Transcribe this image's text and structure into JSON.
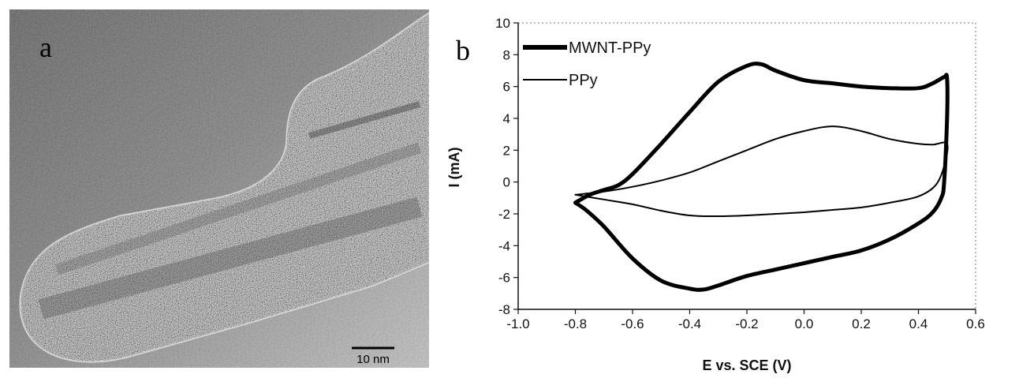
{
  "panel_a": {
    "label": "a",
    "scale_bar_label": "10 nm"
  },
  "panel_b": {
    "label": "b"
  },
  "chart_data": {
    "type": "line",
    "title": "",
    "xlabel": "E vs. SCE (V)",
    "ylabel": "I (mA)",
    "xlim": [
      -1.0,
      0.6
    ],
    "ylim": [
      -8,
      10
    ],
    "x_ticks": [
      "-1.0",
      "-0.8",
      "-0.6",
      "-0.4",
      "-0.2",
      "0.0",
      "0.2",
      "0.4",
      "0.6"
    ],
    "y_ticks": [
      "10",
      "8",
      "6",
      "4",
      "2",
      "0",
      "-2",
      "-4",
      "-6",
      "-8"
    ],
    "legend_position": "top-left",
    "series": [
      {
        "name": "MWNT-PPy",
        "line_weight": "thick",
        "points": [
          [
            -0.8,
            -1.3
          ],
          [
            -0.75,
            -0.8
          ],
          [
            -0.7,
            -0.5
          ],
          [
            -0.65,
            -0.2
          ],
          [
            -0.6,
            0.5
          ],
          [
            -0.5,
            2.4
          ],
          [
            -0.4,
            4.4
          ],
          [
            -0.3,
            6.3
          ],
          [
            -0.2,
            7.3
          ],
          [
            -0.15,
            7.4
          ],
          [
            -0.1,
            7.0
          ],
          [
            0.0,
            6.4
          ],
          [
            0.1,
            6.2
          ],
          [
            0.2,
            6.0
          ],
          [
            0.3,
            5.9
          ],
          [
            0.4,
            5.9
          ],
          [
            0.45,
            6.2
          ],
          [
            0.49,
            6.6
          ],
          [
            0.5,
            6.5
          ],
          [
            0.5,
            4.0
          ],
          [
            0.49,
            0.0
          ],
          [
            0.48,
            -1.0
          ],
          [
            0.45,
            -1.9
          ],
          [
            0.4,
            -2.6
          ],
          [
            0.3,
            -3.6
          ],
          [
            0.2,
            -4.3
          ],
          [
            0.1,
            -4.7
          ],
          [
            0.0,
            -5.1
          ],
          [
            -0.1,
            -5.5
          ],
          [
            -0.2,
            -5.9
          ],
          [
            -0.3,
            -6.5
          ],
          [
            -0.35,
            -6.75
          ],
          [
            -0.4,
            -6.7
          ],
          [
            -0.5,
            -6.2
          ],
          [
            -0.6,
            -4.8
          ],
          [
            -0.7,
            -2.8
          ],
          [
            -0.76,
            -1.8
          ],
          [
            -0.8,
            -1.3
          ]
        ]
      },
      {
        "name": "PPy",
        "line_weight": "thin",
        "points": [
          [
            -0.8,
            -0.8
          ],
          [
            -0.7,
            -0.6
          ],
          [
            -0.6,
            -0.3
          ],
          [
            -0.5,
            0.1
          ],
          [
            -0.4,
            0.6
          ],
          [
            -0.3,
            1.3
          ],
          [
            -0.2,
            2.0
          ],
          [
            -0.1,
            2.7
          ],
          [
            0.0,
            3.2
          ],
          [
            0.1,
            3.5
          ],
          [
            0.2,
            3.2
          ],
          [
            0.3,
            2.7
          ],
          [
            0.4,
            2.4
          ],
          [
            0.45,
            2.35
          ],
          [
            0.5,
            2.4
          ],
          [
            0.49,
            1.0
          ],
          [
            0.46,
            -0.2
          ],
          [
            0.4,
            -0.9
          ],
          [
            0.3,
            -1.3
          ],
          [
            0.2,
            -1.6
          ],
          [
            0.1,
            -1.75
          ],
          [
            0.0,
            -1.9
          ],
          [
            -0.1,
            -2.0
          ],
          [
            -0.2,
            -2.1
          ],
          [
            -0.3,
            -2.15
          ],
          [
            -0.4,
            -2.1
          ],
          [
            -0.5,
            -1.8
          ],
          [
            -0.6,
            -1.4
          ],
          [
            -0.7,
            -1.1
          ],
          [
            -0.8,
            -0.8
          ]
        ]
      }
    ]
  },
  "colors": {
    "line": "#000000",
    "axis": "#111111",
    "frame_dotted": "#777777"
  }
}
